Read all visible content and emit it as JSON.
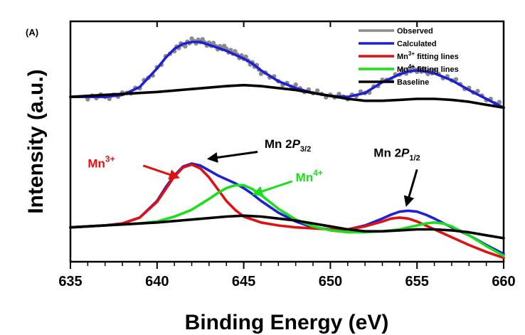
{
  "chart_data": {
    "type": "line",
    "panel_label": "(A)",
    "title": "",
    "xlabel": "Binding Energy (eV)",
    "ylabel": "Intensity (a.u.)",
    "xlim": [
      635,
      660
    ],
    "ylim": [
      0,
      2.45
    ],
    "x_ticks": [
      635,
      640,
      645,
      650,
      655,
      660
    ],
    "grid": false,
    "legend_position": "top-right",
    "legend": [
      {
        "label": "Observed",
        "sup": "",
        "suffix": "",
        "color": "#8a8a8a"
      },
      {
        "label": "Calculated",
        "sup": "",
        "suffix": "",
        "color": "#1f1fd6"
      },
      {
        "label": "Mn",
        "sup": "3+",
        "suffix": " fitting lines",
        "color": "#e01010"
      },
      {
        "label": "Mn",
        "sup": "4+",
        "suffix": " fitting lines",
        "color": "#19e019"
      },
      {
        "label": "Baseline",
        "sup": "",
        "suffix": "",
        "color": "#000000"
      }
    ],
    "series": [
      {
        "name": "Observed",
        "color": "#8a8a8a",
        "style": "points",
        "x": [
          636,
          637,
          638,
          639,
          640,
          641,
          641.5,
          642,
          642.5,
          643,
          643.5,
          644,
          644.5,
          645,
          645.5,
          646,
          647,
          648,
          649,
          650,
          651,
          652,
          653,
          654,
          654.5,
          655,
          655.5,
          656,
          657,
          658,
          659,
          660
        ],
        "y": [
          1.68,
          1.68,
          1.7,
          1.78,
          1.97,
          2.17,
          2.21,
          2.25,
          2.25,
          2.22,
          2.19,
          2.17,
          2.12,
          2.08,
          2.02,
          1.94,
          1.84,
          1.78,
          1.73,
          1.69,
          1.68,
          1.72,
          1.83,
          1.92,
          1.95,
          1.96,
          1.94,
          1.93,
          1.86,
          1.76,
          1.67,
          1.58
        ]
      },
      {
        "name": "Calculated",
        "color": "#1f1fd6",
        "style": "line",
        "x": [
          635,
          636,
          637,
          638,
          639,
          640,
          640.5,
          641,
          641.5,
          642,
          642.5,
          643,
          643.5,
          644,
          644.5,
          645,
          645.5,
          646,
          647,
          648,
          649,
          650,
          651,
          652,
          653,
          654,
          654.5,
          655,
          655.5,
          656,
          657,
          658,
          659,
          660
        ],
        "y": [
          1.68,
          1.68,
          1.68,
          1.7,
          1.78,
          1.97,
          2.08,
          2.17,
          2.22,
          2.24,
          2.24,
          2.21,
          2.18,
          2.15,
          2.11,
          2.07,
          2.02,
          1.95,
          1.84,
          1.77,
          1.72,
          1.69,
          1.68,
          1.72,
          1.83,
          1.91,
          1.94,
          1.95,
          1.94,
          1.92,
          1.85,
          1.75,
          1.66,
          1.57
        ]
      },
      {
        "name": "Baseline",
        "color": "#000000",
        "style": "line",
        "x": [
          635,
          636,
          638,
          640,
          642,
          644,
          645,
          646,
          648,
          650,
          651,
          652,
          653,
          654,
          655,
          656,
          657,
          658,
          659,
          660
        ],
        "y": [
          1.68,
          1.69,
          1.71,
          1.73,
          1.76,
          1.79,
          1.8,
          1.79,
          1.75,
          1.69,
          1.66,
          1.64,
          1.64,
          1.65,
          1.66,
          1.66,
          1.65,
          1.63,
          1.6,
          1.57
        ]
      },
      {
        "name": "Calculated",
        "color": "#1f1fd6",
        "style": "line",
        "x": [
          635,
          636,
          637,
          638,
          639,
          640,
          640.5,
          641,
          641.5,
          642,
          642.5,
          643,
          643.5,
          644,
          644.5,
          645,
          645.5,
          646,
          647,
          648,
          649,
          650,
          651,
          652,
          653,
          653.5,
          654,
          654.5,
          655,
          655.5,
          656,
          657,
          658,
          659,
          660
        ],
        "y": [
          0.35,
          0.36,
          0.37,
          0.39,
          0.45,
          0.62,
          0.76,
          0.88,
          0.97,
          1.0,
          0.98,
          0.93,
          0.88,
          0.84,
          0.8,
          0.75,
          0.69,
          0.62,
          0.5,
          0.41,
          0.35,
          0.33,
          0.33,
          0.37,
          0.44,
          0.48,
          0.51,
          0.52,
          0.51,
          0.48,
          0.44,
          0.35,
          0.27,
          0.17,
          0.08
        ]
      },
      {
        "name": "Mn3+ fitting lines",
        "color": "#e01010",
        "style": "line",
        "x": [
          635,
          636,
          637,
          638,
          639,
          640,
          640.5,
          641,
          641.5,
          642,
          642.5,
          643,
          643.5,
          644,
          644.5,
          645,
          646,
          647,
          648,
          649,
          650,
          651,
          652,
          653,
          653.5,
          654,
          654.5,
          655,
          656,
          657,
          658,
          659,
          660
        ],
        "y": [
          0.35,
          0.36,
          0.37,
          0.39,
          0.45,
          0.61,
          0.74,
          0.87,
          0.96,
          0.99,
          0.95,
          0.86,
          0.74,
          0.62,
          0.53,
          0.46,
          0.4,
          0.37,
          0.35,
          0.34,
          0.33,
          0.33,
          0.36,
          0.41,
          0.44,
          0.45,
          0.44,
          0.41,
          0.33,
          0.25,
          0.17,
          0.1,
          0.04
        ]
      },
      {
        "name": "Mn4+ fitting lines",
        "color": "#19e019",
        "style": "line",
        "x": [
          635,
          637,
          639,
          640,
          641,
          642,
          643,
          643.5,
          644,
          644.5,
          645,
          645.5,
          646,
          647,
          648,
          649,
          650,
          651,
          652,
          653,
          654,
          655,
          655.5,
          656,
          656.5,
          657,
          658,
          659,
          660
        ],
        "y": [
          0.35,
          0.37,
          0.39,
          0.41,
          0.46,
          0.53,
          0.64,
          0.7,
          0.75,
          0.78,
          0.78,
          0.74,
          0.68,
          0.54,
          0.43,
          0.36,
          0.32,
          0.3,
          0.3,
          0.31,
          0.33,
          0.37,
          0.39,
          0.4,
          0.39,
          0.36,
          0.27,
          0.16,
          0.06
        ]
      },
      {
        "name": "Baseline",
        "color": "#000000",
        "style": "line",
        "x": [
          635,
          636,
          638,
          640,
          642,
          644,
          645,
          646,
          648,
          650,
          651,
          652,
          653,
          654,
          655,
          656,
          657,
          658,
          659,
          660
        ],
        "y": [
          0.35,
          0.36,
          0.38,
          0.4,
          0.43,
          0.46,
          0.47,
          0.46,
          0.42,
          0.36,
          0.33,
          0.31,
          0.31,
          0.32,
          0.33,
          0.33,
          0.32,
          0.3,
          0.27,
          0.24
        ]
      }
    ],
    "annotations": [
      {
        "text": "Mn 2",
        "ital": "P",
        "sub": "3/2",
        "sup": "",
        "color": "#000000",
        "tx": 646.2,
        "ty": 1.16,
        "arrow": {
          "from": [
            645.8,
            1.12
          ],
          "to": [
            643.0,
            1.05
          ]
        }
      },
      {
        "text": "Mn",
        "ital": "",
        "sub": "",
        "sup": "3+",
        "color": "#e01010",
        "tx": 636.0,
        "ty": 0.96,
        "arrow": {
          "from": [
            639.2,
            0.98
          ],
          "to": [
            641.2,
            0.86
          ]
        }
      },
      {
        "text": "Mn",
        "ital": "",
        "sub": "",
        "sup": "4+",
        "color": "#19e019",
        "tx": 648.0,
        "ty": 0.82,
        "arrow": {
          "from": [
            647.8,
            0.82
          ],
          "to": [
            645.6,
            0.69
          ]
        }
      },
      {
        "text": "Mn 2",
        "ital": "P",
        "sub": "1/2",
        "sup": "",
        "color": "#000000",
        "tx": 652.5,
        "ty": 1.07,
        "arrow": {
          "from": [
            655.0,
            0.94
          ],
          "to": [
            654.4,
            0.58
          ]
        }
      }
    ]
  }
}
